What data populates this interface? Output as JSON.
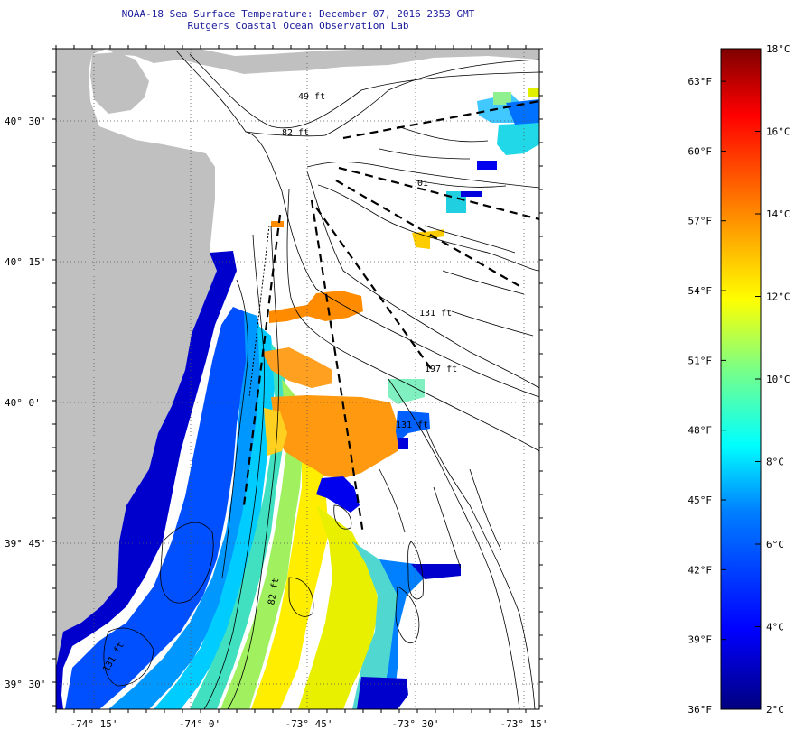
{
  "title": "NOAA-18 Sea Surface Temperature:  December 07, 2016 2353 GMT",
  "subtitle": "Rutgers Coastal Ocean Observation Lab",
  "lat_labels": [
    "40° 30'",
    "40° 15'",
    "40° 0'",
    "39° 45'",
    "39° 30'"
  ],
  "lon_labels": [
    "-74° 15'",
    "-74° 0'",
    "-73° 45'",
    "-73° 30'",
    "-73° 15'"
  ],
  "isobath_labels": [
    "49 ft",
    "82 ft",
    "131 ft",
    "197 ft",
    "131 ft",
    "82 ft",
    "131 ft",
    "01"
  ],
  "colorbar": {
    "celsius_labels": [
      "18°C",
      "16°C",
      "14°C",
      "12°C",
      "10°C",
      "8°C",
      "6°C",
      "4°C",
      "2°C"
    ],
    "fahrenheit_labels": [
      "63°F",
      "60°F",
      "57°F",
      "54°F",
      "51°F",
      "48°F",
      "45°F",
      "42°F",
      "39°F",
      "36°F"
    ],
    "range_c": [
      2,
      18
    ],
    "range_f": [
      36,
      64.4
    ],
    "colors": [
      "#00007f",
      "#0000ff",
      "#0080ff",
      "#00ffff",
      "#80ff80",
      "#ffff00",
      "#ff8000",
      "#ff0000",
      "#7f0000"
    ]
  },
  "colors": {
    "land": "#c0c0c0",
    "water_no_data": "#ffffff",
    "contour": "#000000",
    "title": "#1a1a9c"
  }
}
